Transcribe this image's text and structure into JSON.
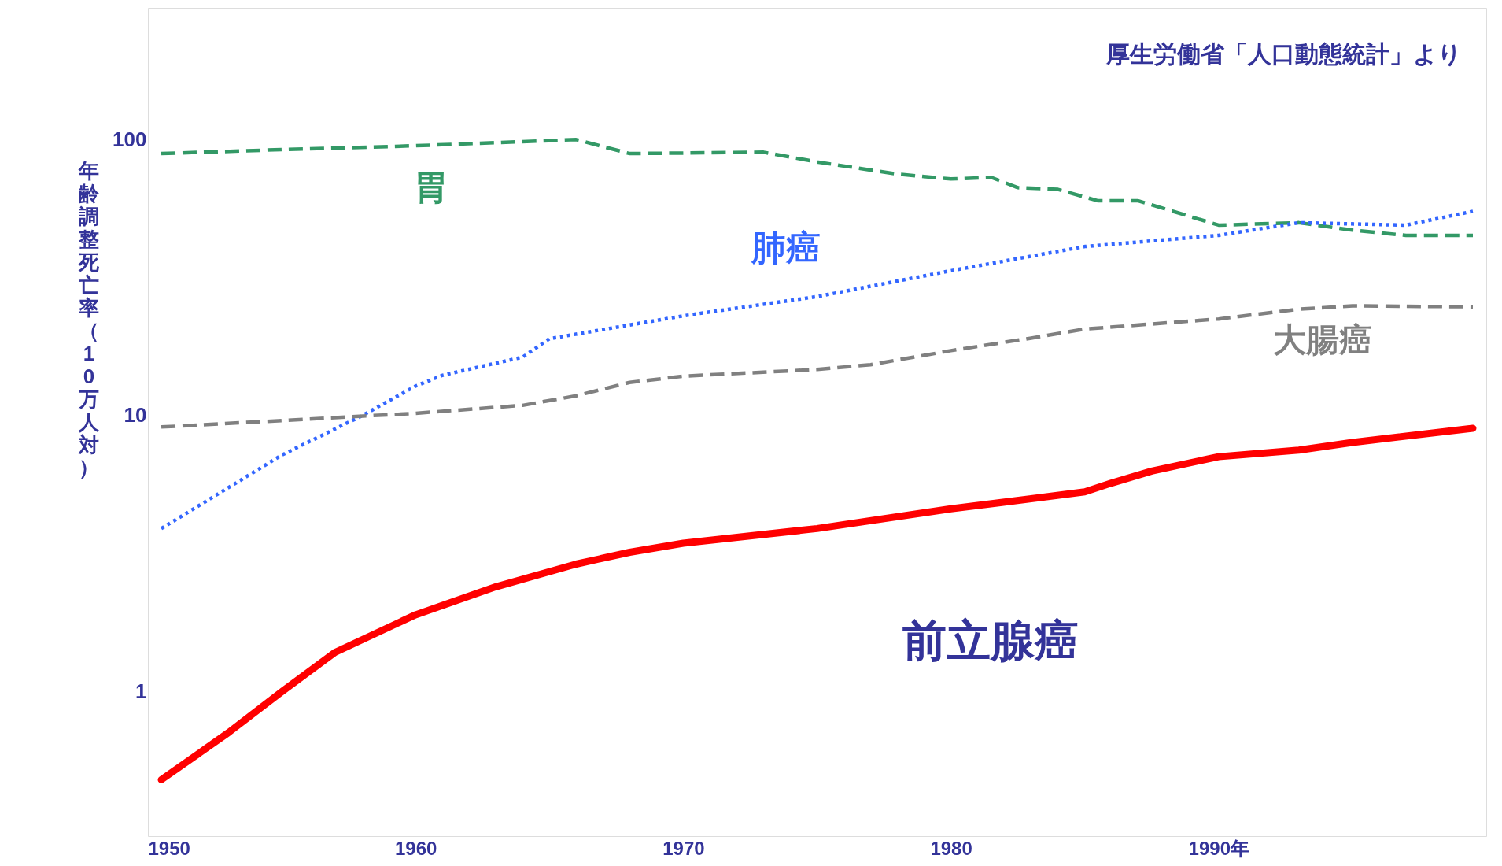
{
  "chart_data": {
    "type": "line",
    "ylabel": "年齢調整死亡率（10万人対）",
    "annotations": [
      "厚生労働省「人口動態統計」より"
    ],
    "log": "y",
    "grid": false,
    "marker": "none",
    "xlim": [
      1950,
      2000
    ],
    "xticks": [
      1950,
      1960,
      1970,
      1980,
      {
        "value": 1990,
        "label": "1990年"
      },
      {
        "value": 2000,
        "label": null
      }
    ],
    "ylim": [
      0.3,
      300
    ],
    "yticks": [
      1,
      10,
      100
    ],
    "series": [
      {
        "name": "胃",
        "color": "#339966",
        "line_style": "dashed",
        "x": [
          1950.5,
          1955,
          1960,
          1966,
          1968,
          1973,
          1975,
          1978,
          1980,
          1981.5,
          1982.5,
          1984,
          1985.5,
          1987,
          1990,
          1993,
          1995,
          1997,
          1999.5
        ],
        "values": [
          89,
          92,
          95,
          100,
          89,
          90,
          83,
          75,
          72,
          73,
          67,
          66,
          60,
          60,
          49,
          50,
          47,
          45,
          45
        ]
      },
      {
        "name": "肺癌",
        "color": "#3366ff",
        "line_style": "dotted",
        "x": [
          1950.5,
          1955,
          1958,
          1960,
          1961,
          1964,
          1965,
          1970,
          1975,
          1980,
          1985,
          1990,
          1993,
          1997,
          1999.5
        ],
        "values": [
          3.9,
          7.2,
          10,
          12.8,
          14,
          16.3,
          19,
          23,
          27,
          33.5,
          41,
          45,
          50,
          49,
          55
        ]
      },
      {
        "name": "大腸癌",
        "color": "#808080",
        "line_style": "dashed",
        "x": [
          1950.5,
          1955,
          1960,
          1964,
          1966,
          1968,
          1970,
          1975,
          1977,
          1980,
          1983,
          1985,
          1990,
          1993,
          1995,
          1999.5
        ],
        "values": [
          9.1,
          9.6,
          10.2,
          10.9,
          11.8,
          13.2,
          13.9,
          14.7,
          15.3,
          17.2,
          19.1,
          20.6,
          22.4,
          24.3,
          25,
          24.8
        ]
      },
      {
        "name": "前立腺癌",
        "color": "#ff0000",
        "line_style": "solid",
        "x": [
          1950.5,
          1953,
          1955,
          1957,
          1960,
          1963,
          1966,
          1968,
          1970,
          1975,
          1980,
          1983,
          1985,
          1986,
          1987.5,
          1990,
          1993,
          1995,
          1999.5
        ],
        "values": [
          0.48,
          0.71,
          1.0,
          1.39,
          1.9,
          2.4,
          2.9,
          3.2,
          3.45,
          3.9,
          4.6,
          5.0,
          5.3,
          5.7,
          6.3,
          7.1,
          7.5,
          8.0,
          9.0
        ]
      }
    ]
  }
}
